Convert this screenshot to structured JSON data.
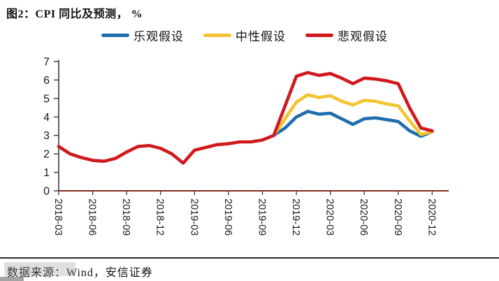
{
  "title": {
    "prefix": "图2：",
    "text": "CPI 同比及预测， %"
  },
  "footer": {
    "source_label": "数据来源：Wind，安信证券"
  },
  "colors": {
    "optimistic_blue": "#1F6DAD",
    "neutral_yellow": "#F2C431",
    "pessimistic_red": "#D0191C",
    "x_axis": "#8B2C24",
    "y_axis": "#3a3a3a",
    "tick_text": "#1a1a1a"
  },
  "chart_data": {
    "type": "line",
    "title": "图2：CPI 同比及预测， %",
    "xlabel": "",
    "ylabel": "",
    "ylim": [
      0,
      7
    ],
    "yticks": [
      0,
      1,
      2,
      3,
      4,
      5,
      6,
      7
    ],
    "grid": false,
    "legend_position": "top",
    "x": [
      "2018-03",
      "2018-04",
      "2018-05",
      "2018-06",
      "2018-07",
      "2018-08",
      "2018-09",
      "2018-10",
      "2018-11",
      "2018-12",
      "2019-01",
      "2019-02",
      "2019-03",
      "2019-04",
      "2019-05",
      "2019-06",
      "2019-07",
      "2019-08",
      "2019-09",
      "2019-10",
      "2019-11",
      "2019-12",
      "2020-01",
      "2020-02",
      "2020-03",
      "2020-04",
      "2020-05",
      "2020-06",
      "2020-07",
      "2020-08",
      "2020-09",
      "2020-10",
      "2020-11",
      "2020-12"
    ],
    "x_tick_labels": [
      "2018-03",
      "2018-06",
      "2018-09",
      "2018-12",
      "2019-03",
      "2019-06",
      "2019-09",
      "2019-12",
      "2020-03",
      "2020-06",
      "2020-09",
      "2020-12"
    ],
    "series": [
      {
        "name": "乐观假设",
        "color": "#1F6DAD",
        "values": [
          null,
          null,
          null,
          null,
          null,
          null,
          null,
          null,
          null,
          null,
          null,
          null,
          null,
          null,
          null,
          null,
          null,
          null,
          null,
          3.0,
          3.4,
          4.0,
          4.3,
          4.15,
          4.2,
          3.9,
          3.6,
          3.9,
          3.95,
          3.85,
          3.75,
          3.25,
          2.95,
          3.2
        ]
      },
      {
        "name": "中性假设",
        "color": "#F2C431",
        "values": [
          null,
          null,
          null,
          null,
          null,
          null,
          null,
          null,
          null,
          null,
          null,
          null,
          null,
          null,
          null,
          null,
          null,
          null,
          null,
          3.0,
          3.9,
          4.8,
          5.2,
          5.05,
          5.15,
          4.85,
          4.65,
          4.9,
          4.85,
          4.7,
          4.6,
          3.8,
          3.05,
          3.2
        ]
      },
      {
        "name": "悲观假设",
        "color": "#D0191C",
        "values": [
          2.4,
          2.0,
          1.8,
          1.65,
          1.6,
          1.75,
          2.1,
          2.4,
          2.45,
          2.3,
          2.0,
          1.5,
          2.2,
          2.35,
          2.5,
          2.55,
          2.65,
          2.65,
          2.75,
          3.0,
          4.6,
          6.2,
          6.4,
          6.25,
          6.35,
          6.1,
          5.8,
          6.1,
          6.05,
          5.95,
          5.8,
          4.5,
          3.4,
          3.25
        ]
      }
    ]
  }
}
